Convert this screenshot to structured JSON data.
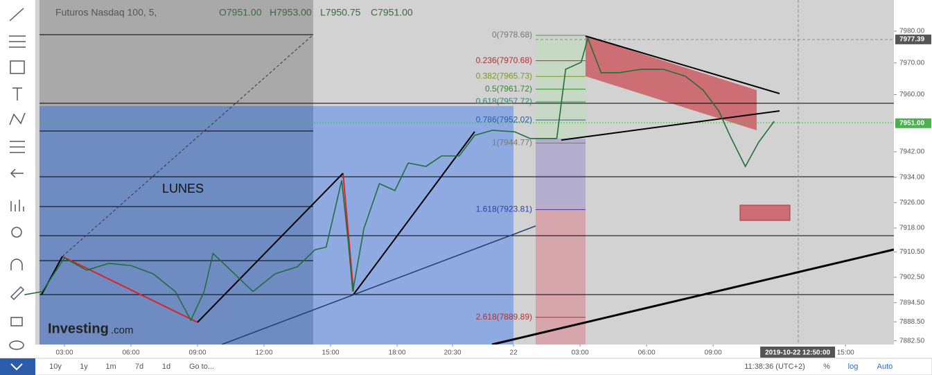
{
  "chart_data": {
    "type": "line",
    "title": "Futuros Nasdaq 100, 5,",
    "ohlc": [
      "O7951.00",
      "H7953.00",
      "L7950.75",
      "C7951.00"
    ],
    "color": "#1e6e3a",
    "x": [
      1.2,
      2,
      3,
      4,
      5,
      6,
      7,
      8,
      8.7,
      9.3,
      9.7,
      10.5,
      11.5,
      12.5,
      13.5,
      14.3,
      14.8,
      15.5,
      15.8,
      16,
      16.5,
      17.2,
      17.9,
      18.5,
      19.3,
      20,
      20.8,
      21.5,
      22.3,
      23.3,
      24,
      25.2,
      25.6,
      26.3,
      26.6,
      27.2,
      28,
      29,
      30,
      31,
      31.8,
      32.5,
      33,
      33.7,
      34.3,
      35
    ],
    "values": [
      7897,
      7898,
      7908.6,
      7904.7,
      7906.9,
      7906.2,
      7903.6,
      7898,
      7889,
      7898,
      7910,
      7904.7,
      7898,
      7903.6,
      7905.8,
      7911.2,
      7912,
      7933,
      7913.4,
      7898,
      7917.8,
      7932,
      7929.8,
      7938.5,
      7937.4,
      7940.7,
      7940.7,
      7947.2,
      7948.8,
      7948.3,
      7946.2,
      7946.2,
      7968,
      7970.2,
      7977.8,
      7966.9,
      7966.9,
      7968,
      7968,
      7965.8,
      7961.4,
      7954.9,
      7947.2,
      7937.4,
      7945,
      7951.6
    ],
    "xlim": [
      1.875,
      40.4
    ],
    "ylim": [
      7878.5,
      7989.8
    ],
    "xticks": [
      {
        "value": 3,
        "label": "03:00"
      },
      {
        "value": 6,
        "label": "06:00"
      },
      {
        "value": 9,
        "label": "09:00"
      },
      {
        "value": 12,
        "label": "12:00"
      },
      {
        "value": 15,
        "label": "15:00"
      },
      {
        "value": 18,
        "label": "18:00"
      },
      {
        "value": 20.5,
        "label": "20:30"
      },
      {
        "value": 23.25,
        "label": "22"
      },
      {
        "value": 26.25,
        "label": "03:00"
      },
      {
        "value": 29.25,
        "label": "06:00"
      },
      {
        "value": 32.25,
        "label": "09:00"
      },
      {
        "value": 38.22,
        "label": "15:00"
      }
    ],
    "yticks": [
      {
        "value": 7980,
        "label": "7980.00"
      },
      {
        "value": 7970,
        "label": "7970.00"
      },
      {
        "value": 7960,
        "label": "7960.00"
      },
      {
        "value": 7942,
        "label": "7942.00"
      },
      {
        "value": 7934,
        "label": "7934.00"
      },
      {
        "value": 7926,
        "label": "7926.00"
      },
      {
        "value": 7918,
        "label": "7918.00"
      },
      {
        "value": 7910.5,
        "label": "7910.50"
      },
      {
        "value": 7902.5,
        "label": "7902.50"
      },
      {
        "value": 7894.5,
        "label": "7894.50"
      },
      {
        "value": 7888.5,
        "label": "7888.50"
      },
      {
        "value": 7882.5,
        "label": "7882.50"
      }
    ],
    "price_tags": [
      {
        "value": 7977.39,
        "label": "7977.39"
      },
      {
        "value": 7951,
        "label": "7951.00"
      }
    ],
    "cursor_x": {
      "value": 36.06,
      "label": "2019-10-22 12:50:00"
    },
    "fib": [
      {
        "label": "0(7978.68)",
        "value": 7978.68,
        "color": "#777"
      },
      {
        "label": "0.236(7970.68)",
        "value": 7970.68,
        "color": "#b03030"
      },
      {
        "label": "0.382(7965.73)",
        "value": 7965.73,
        "color": "#7a9a20"
      },
      {
        "label": "0.5(7961.72)",
        "value": 7961.72,
        "color": "#2e8b2e"
      },
      {
        "label": "0.618(7957.72)",
        "value": 7957.72,
        "color": "#2a8a6a"
      },
      {
        "label": "0.786(7952.02)",
        "value": 7952.02,
        "color": "#2e5f9e"
      },
      {
        "label": "1(7944.77)",
        "value": 7944.77,
        "color": "#777"
      },
      {
        "label": "1.618(7923.81)",
        "value": 7923.81,
        "color": "#2e3fae"
      },
      {
        "label": "2.618(7889.89)",
        "value": 7889.89,
        "color": "#b03030"
      }
    ],
    "annotation": "LUNES"
  },
  "watermark": [
    "Investing",
    ".com"
  ],
  "toolbar": [
    "10y",
    "1y",
    "1m",
    "7d",
    "1d",
    "Go to..."
  ],
  "status": [
    "11:38:36 (UTC+2)",
    "%",
    "log",
    "Auto"
  ]
}
